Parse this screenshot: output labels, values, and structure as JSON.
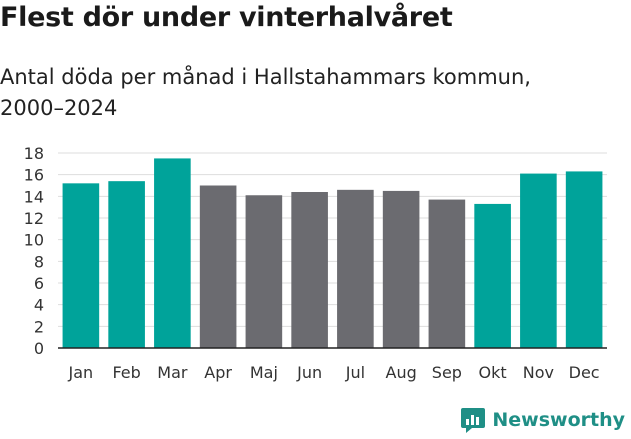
{
  "title": "Flest dör under vinterhalvåret",
  "subtitle": "Antal döda per månad i Hallstahammars kommun, 2000–2024",
  "brand": {
    "name": "Newsworthy",
    "icon": "newsworthy-logo-icon"
  },
  "colors": {
    "highlight": "#00a39a",
    "base": "#6b6b70",
    "grid": "#dddddd",
    "axis": "#222222",
    "brand": "#1f8f86"
  },
  "chart_data": {
    "type": "bar",
    "title": "Flest dör under vinterhalvåret",
    "subtitle": "Antal döda per månad i Hallstahammars kommun, 2000–2024",
    "xlabel": "",
    "ylabel": "",
    "ylim": [
      0,
      18
    ],
    "yticks": [
      0,
      2,
      4,
      6,
      8,
      10,
      12,
      14,
      16,
      18
    ],
    "grid": true,
    "categories": [
      "Jan",
      "Feb",
      "Mar",
      "Apr",
      "Maj",
      "Jun",
      "Jul",
      "Aug",
      "Sep",
      "Okt",
      "Nov",
      "Dec"
    ],
    "values": [
      15.2,
      15.4,
      17.5,
      15.0,
      14.1,
      14.4,
      14.6,
      14.5,
      13.7,
      13.3,
      16.1,
      16.3
    ],
    "highlighted": [
      true,
      true,
      true,
      false,
      false,
      false,
      false,
      false,
      false,
      true,
      true,
      true
    ]
  }
}
